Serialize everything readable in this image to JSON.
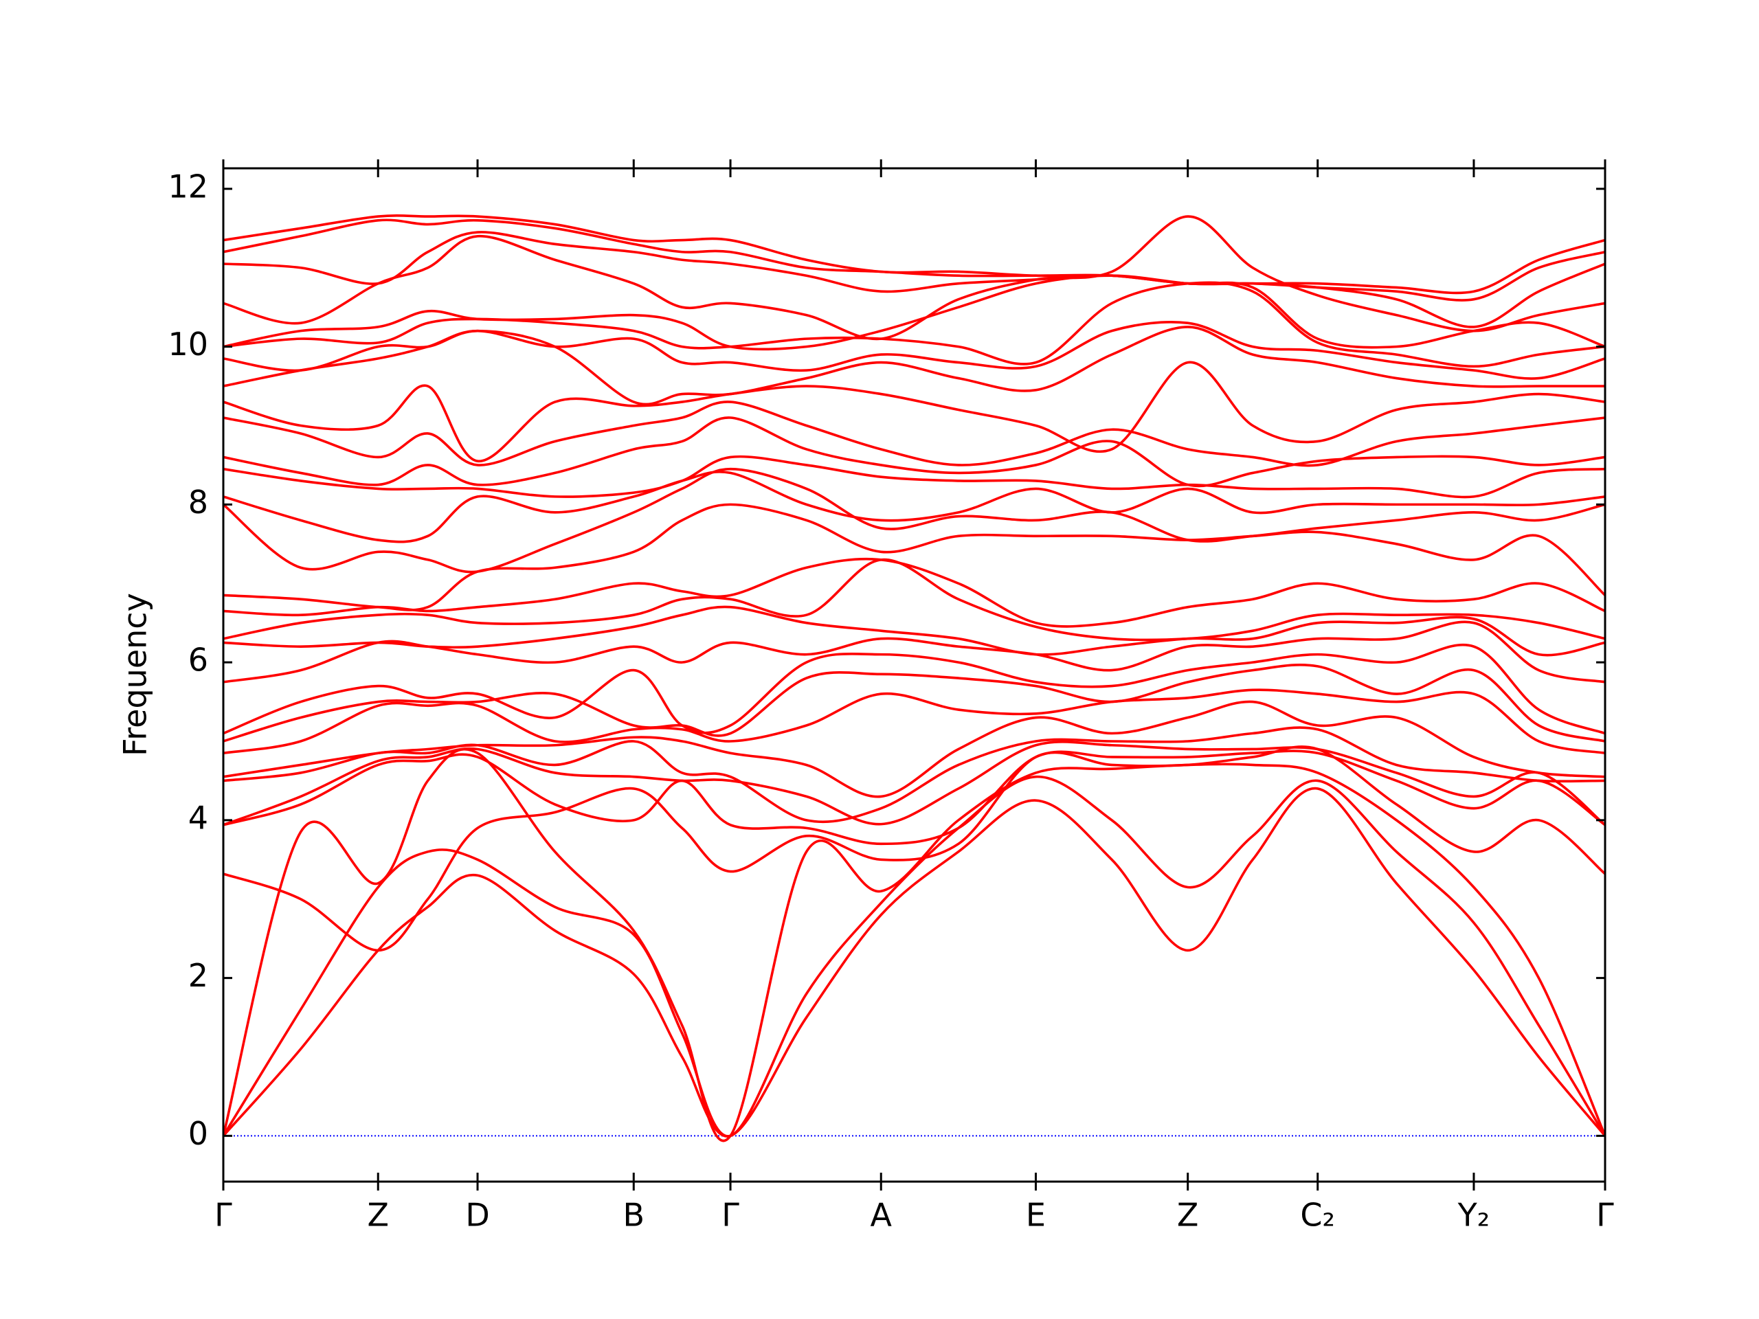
{
  "chart_data": {
    "type": "line",
    "ylabel": "Frequency",
    "color": "#ff0000",
    "hline": 0,
    "hline_color": "#0000ff",
    "xlim": [
      0,
      1
    ],
    "ylim": [
      -0.58,
      12.26
    ],
    "yticks": [
      0,
      2,
      4,
      6,
      8,
      10,
      12
    ],
    "xticks": [
      {
        "value": 0,
        "label": "Γ"
      },
      {
        "value": 0.112,
        "label": "Z"
      },
      {
        "value": 0.184,
        "label": "D"
      },
      {
        "value": 0.297,
        "label": "B"
      },
      {
        "value": 0.367,
        "label": "Γ"
      },
      {
        "value": 0.476,
        "label": "A"
      },
      {
        "value": 0.588,
        "label": "E"
      },
      {
        "value": 0.698,
        "label": "Z"
      },
      {
        "value": 0.792,
        "label": "C₂"
      },
      {
        "value": 0.905,
        "label": "Y₂"
      },
      {
        "value": 1,
        "label": "Γ"
      }
    ],
    "x": [
      0,
      0.056,
      0.112,
      0.148,
      0.184,
      0.24,
      0.297,
      0.332,
      0.367,
      0.422,
      0.476,
      0.532,
      0.588,
      0.643,
      0.698,
      0.745,
      0.792,
      0.849,
      0.905,
      0.952,
      1
    ],
    "series": [
      {
        "values": [
          0,
          1.1,
          2.35,
          2.9,
          3.3,
          2.6,
          2.05,
          1.0,
          0,
          1.5,
          2.8,
          3.6,
          4.25,
          3.5,
          2.35,
          3.5,
          4.4,
          3.2,
          2.1,
          1.0,
          0
        ]
      },
      {
        "values": [
          0,
          1.6,
          3.15,
          3.6,
          3.5,
          2.9,
          2.55,
          1.3,
          0,
          1.8,
          2.95,
          3.9,
          4.55,
          4.0,
          3.15,
          3.8,
          4.5,
          3.6,
          2.7,
          1.4,
          0
        ]
      },
      {
        "values": [
          0,
          3.85,
          3.2,
          4.5,
          4.85,
          3.6,
          2.6,
          1.4,
          0,
          3.6,
          3.1,
          4.0,
          4.6,
          4.65,
          4.7,
          4.7,
          4.6,
          4.0,
          3.15,
          2.0,
          0
        ]
      },
      {
        "values": [
          3.32,
          3.0,
          2.35,
          3.0,
          3.9,
          4.1,
          4.4,
          3.9,
          3.35,
          3.8,
          3.5,
          3.7,
          4.8,
          4.7,
          4.7,
          4.8,
          4.9,
          4.2,
          3.6,
          4.0,
          3.32
        ]
      },
      {
        "values": [
          3.94,
          4.2,
          4.7,
          4.75,
          4.8,
          4.2,
          4.0,
          4.5,
          3.94,
          3.9,
          3.7,
          3.9,
          4.8,
          4.8,
          4.8,
          4.85,
          4.85,
          4.5,
          4.15,
          4.5,
          3.94
        ]
      },
      {
        "values": [
          3.94,
          4.3,
          4.75,
          4.8,
          4.9,
          4.6,
          4.55,
          4.5,
          4.5,
          4.3,
          3.95,
          4.4,
          4.95,
          4.95,
          4.9,
          4.9,
          4.9,
          4.6,
          4.3,
          4.6,
          3.94
        ]
      },
      {
        "values": [
          4.5,
          4.6,
          4.85,
          4.85,
          4.95,
          4.7,
          5.0,
          4.6,
          4.55,
          4.0,
          4.15,
          4.7,
          5.0,
          5.0,
          5.0,
          5.1,
          5.15,
          4.7,
          4.6,
          4.5,
          4.5
        ]
      },
      {
        "values": [
          4.55,
          4.7,
          4.85,
          4.9,
          4.95,
          4.95,
          5.05,
          5.0,
          4.85,
          4.7,
          4.3,
          4.9,
          5.3,
          5.1,
          5.3,
          5.5,
          5.2,
          5.3,
          4.8,
          4.6,
          4.55
        ]
      },
      {
        "values": [
          4.85,
          5.0,
          5.45,
          5.45,
          5.45,
          5.0,
          5.15,
          5.15,
          5.0,
          5.2,
          5.6,
          5.4,
          5.35,
          5.5,
          5.55,
          5.65,
          5.6,
          5.5,
          5.6,
          5.0,
          4.85
        ]
      },
      {
        "values": [
          5.0,
          5.3,
          5.5,
          5.5,
          5.5,
          5.6,
          5.2,
          5.2,
          5.1,
          5.8,
          5.85,
          5.8,
          5.7,
          5.5,
          5.75,
          5.9,
          5.95,
          5.6,
          5.9,
          5.2,
          5.0
        ]
      },
      {
        "values": [
          5.1,
          5.5,
          5.7,
          5.55,
          5.6,
          5.3,
          5.9,
          5.2,
          5.2,
          6.0,
          6.1,
          6.0,
          5.75,
          5.7,
          5.9,
          6.0,
          6.1,
          6.0,
          6.2,
          5.4,
          5.1
        ]
      },
      {
        "values": [
          5.75,
          5.9,
          6.25,
          6.2,
          6.1,
          6.0,
          6.2,
          6.0,
          6.25,
          6.1,
          6.3,
          6.2,
          6.1,
          5.9,
          6.2,
          6.2,
          6.3,
          6.3,
          6.5,
          5.9,
          5.75
        ]
      },
      {
        "values": [
          6.25,
          6.2,
          6.25,
          6.2,
          6.2,
          6.3,
          6.45,
          6.6,
          6.7,
          6.5,
          6.4,
          6.3,
          6.1,
          6.2,
          6.3,
          6.3,
          6.5,
          6.5,
          6.55,
          6.1,
          6.25
        ]
      },
      {
        "values": [
          6.3,
          6.5,
          6.6,
          6.6,
          6.5,
          6.5,
          6.6,
          6.8,
          6.8,
          6.6,
          7.3,
          6.8,
          6.45,
          6.3,
          6.3,
          6.4,
          6.6,
          6.6,
          6.6,
          6.5,
          6.3
        ]
      },
      {
        "values": [
          6.65,
          6.6,
          6.7,
          6.65,
          6.7,
          6.8,
          7.0,
          6.9,
          6.85,
          7.2,
          7.3,
          7.0,
          6.5,
          6.5,
          6.7,
          6.8,
          7.0,
          6.8,
          6.8,
          7.0,
          6.65
        ]
      },
      {
        "values": [
          6.85,
          6.8,
          6.7,
          6.7,
          7.15,
          7.2,
          7.4,
          7.8,
          8.0,
          7.8,
          7.4,
          7.6,
          7.6,
          7.6,
          7.55,
          7.6,
          7.65,
          7.5,
          7.3,
          7.6,
          6.85
        ]
      },
      {
        "values": [
          8.0,
          7.2,
          7.4,
          7.3,
          7.15,
          7.5,
          7.9,
          8.2,
          8.45,
          8.2,
          7.7,
          7.85,
          7.8,
          7.9,
          7.55,
          7.6,
          7.7,
          7.8,
          7.9,
          7.8,
          8.0
        ]
      },
      {
        "values": [
          8.1,
          7.8,
          7.55,
          7.6,
          8.1,
          7.9,
          8.1,
          8.3,
          8.4,
          8.0,
          7.8,
          7.9,
          8.2,
          7.9,
          8.2,
          7.9,
          8.0,
          8.0,
          8.0,
          8.0,
          8.1
        ]
      },
      {
        "values": [
          8.45,
          8.3,
          8.2,
          8.2,
          8.2,
          8.1,
          8.15,
          8.3,
          8.6,
          8.5,
          8.35,
          8.3,
          8.3,
          8.2,
          8.25,
          8.2,
          8.2,
          8.2,
          8.1,
          8.4,
          8.45
        ]
      },
      {
        "values": [
          8.6,
          8.4,
          8.25,
          8.5,
          8.25,
          8.4,
          8.7,
          8.8,
          9.1,
          8.7,
          8.5,
          8.4,
          8.5,
          8.8,
          8.25,
          8.4,
          8.55,
          8.6,
          8.6,
          8.5,
          8.6
        ]
      },
      {
        "values": [
          9.1,
          8.9,
          8.6,
          8.9,
          8.5,
          8.8,
          9.0,
          9.1,
          9.3,
          9.0,
          8.7,
          8.5,
          8.65,
          8.95,
          8.7,
          8.6,
          8.5,
          8.8,
          8.9,
          9.0,
          9.1
        ]
      },
      {
        "values": [
          9.3,
          9.0,
          9.0,
          9.5,
          8.55,
          9.3,
          9.25,
          9.3,
          9.4,
          9.5,
          9.4,
          9.2,
          9.0,
          8.7,
          9.8,
          9.0,
          8.8,
          9.2,
          9.3,
          9.4,
          9.3
        ]
      },
      {
        "values": [
          9.5,
          9.7,
          9.85,
          10.0,
          10.2,
          10.0,
          9.3,
          9.4,
          9.4,
          9.6,
          9.8,
          9.6,
          9.45,
          9.9,
          10.25,
          9.9,
          9.8,
          9.6,
          9.5,
          9.5,
          9.5
        ]
      },
      {
        "values": [
          9.85,
          9.7,
          10.0,
          10.0,
          10.2,
          10.0,
          10.1,
          9.8,
          9.8,
          9.7,
          9.9,
          9.8,
          9.75,
          10.2,
          10.3,
          10.0,
          9.95,
          9.8,
          9.7,
          9.6,
          9.85
        ]
      },
      {
        "values": [
          10.0,
          10.1,
          10.05,
          10.3,
          10.35,
          10.3,
          10.2,
          10.0,
          10.0,
          10.1,
          10.1,
          10.0,
          9.8,
          10.55,
          10.8,
          10.7,
          10.05,
          9.9,
          9.75,
          9.9,
          10.0
        ]
      },
      {
        "values": [
          10.0,
          10.2,
          10.25,
          10.45,
          10.35,
          10.35,
          10.4,
          10.3,
          10.0,
          10.0,
          10.2,
          10.5,
          10.8,
          10.9,
          10.8,
          10.75,
          10.1,
          10.0,
          10.2,
          10.3,
          10.0
        ]
      },
      {
        "values": [
          10.55,
          10.3,
          10.8,
          11.0,
          11.4,
          11.1,
          10.8,
          10.5,
          10.55,
          10.4,
          10.1,
          10.6,
          10.85,
          10.95,
          11.65,
          11.0,
          10.65,
          10.4,
          10.2,
          10.4,
          10.55
        ]
      },
      {
        "values": [
          11.05,
          11.0,
          10.8,
          11.2,
          11.45,
          11.3,
          11.2,
          11.1,
          11.05,
          10.9,
          10.7,
          10.8,
          10.85,
          10.9,
          10.8,
          10.8,
          10.75,
          10.6,
          10.25,
          10.7,
          11.05
        ]
      },
      {
        "values": [
          11.2,
          11.4,
          11.6,
          11.55,
          11.6,
          11.5,
          11.3,
          11.2,
          11.2,
          11.0,
          10.95,
          10.9,
          10.9,
          10.9,
          10.8,
          10.8,
          10.75,
          10.7,
          10.6,
          11.0,
          11.2
        ]
      },
      {
        "values": [
          11.35,
          11.5,
          11.65,
          11.65,
          11.65,
          11.55,
          11.35,
          11.35,
          11.35,
          11.1,
          10.95,
          10.95,
          10.9,
          10.9,
          10.8,
          10.8,
          10.8,
          10.75,
          10.7,
          11.1,
          11.35
        ]
      }
    ]
  }
}
